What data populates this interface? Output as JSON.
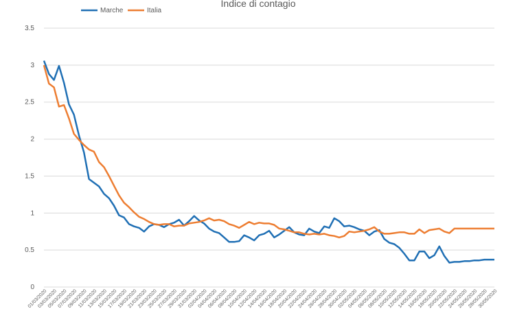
{
  "chart_data": {
    "type": "line",
    "title": "Indice di contagio",
    "xlabel": "",
    "ylabel": "",
    "ylim": [
      0,
      3.5
    ],
    "yticks": [
      "0",
      "0.5",
      "1",
      "1.5",
      "2",
      "2.5",
      "3",
      "3.5"
    ],
    "grid": true,
    "legend": "top-left",
    "x": [
      "01/03/2020",
      "02/03/2020",
      "03/03/2020",
      "04/03/2020",
      "05/03/2020",
      "06/03/2020",
      "07/03/2020",
      "08/03/2020",
      "09/03/2020",
      "10/03/2020",
      "11/03/2020",
      "12/03/2020",
      "13/03/2020",
      "14/03/2020",
      "15/03/2020",
      "16/03/2020",
      "17/03/2020",
      "18/03/2020",
      "19/03/2020",
      "20/03/2020",
      "21/03/2020",
      "22/03/2020",
      "23/03/2020",
      "24/03/2020",
      "25/03/2020",
      "26/03/2020",
      "27/03/2020",
      "28/03/2020",
      "29/03/2020",
      "30/03/2020",
      "31/03/2020",
      "01/04/2020",
      "02/04/2020",
      "03/04/2020",
      "04/04/2020",
      "05/04/2020",
      "06/04/2020",
      "07/04/2020",
      "08/04/2020",
      "09/04/2020",
      "10/04/2020",
      "11/04/2020",
      "12/04/2020",
      "13/04/2020",
      "14/04/2020",
      "15/04/2020",
      "16/04/2020",
      "17/04/2020",
      "18/04/2020",
      "19/04/2020",
      "20/04/2020",
      "21/04/2020",
      "22/04/2020",
      "23/04/2020",
      "24/04/2020",
      "25/04/2020",
      "26/04/2020",
      "27/04/2020",
      "28/04/2020",
      "29/04/2020",
      "30/04/2020",
      "01/05/2020",
      "02/05/2020",
      "03/05/2020",
      "04/05/2020",
      "05/05/2020",
      "06/05/2020",
      "07/05/2020",
      "08/05/2020",
      "09/05/2020",
      "10/05/2020",
      "11/05/2020",
      "12/05/2020",
      "13/05/2020",
      "14/05/2020",
      "15/05/2020",
      "16/05/2020",
      "17/05/2020",
      "18/05/2020",
      "19/05/2020",
      "20/05/2020",
      "21/05/2020",
      "22/05/2020",
      "23/05/2020",
      "24/05/2020",
      "25/05/2020",
      "26/05/2020",
      "27/05/2020",
      "28/05/2020",
      "29/05/2020",
      "30/05/2020"
    ],
    "xtick_labels": [
      "01/03/2020",
      "03/03/2020",
      "05/03/2020",
      "07/03/2020",
      "09/03/2020",
      "11/03/2020",
      "13/03/2020",
      "15/03/2020",
      "17/03/2020",
      "19/03/2020",
      "21/03/2020",
      "23/03/2020",
      "25/03/2020",
      "27/03/2020",
      "29/03/2020",
      "31/03/2020",
      "02/04/2020",
      "04/04/2020",
      "06/04/2020",
      "08/04/2020",
      "10/04/2020",
      "12/04/2020",
      "14/04/2020",
      "16/04/2020",
      "18/04/2020",
      "20/04/2020",
      "22/04/2020",
      "24/04/2020",
      "26/04/2020",
      "28/04/2020",
      "30/04/2020",
      "02/05/2020",
      "04/05/2020",
      "06/05/2020",
      "08/05/2020",
      "10/05/2020",
      "12/05/2020",
      "14/05/2020",
      "16/05/2020",
      "18/05/2020",
      "20/05/2020",
      "22/05/2020",
      "24/05/2020",
      "26/05/2020",
      "28/05/2020",
      "30/05/2020"
    ],
    "series": [
      {
        "name": "Marche",
        "color": "#1f6fb4",
        "values": [
          3.06,
          2.88,
          2.8,
          2.99,
          2.76,
          2.47,
          2.33,
          2.05,
          1.82,
          1.46,
          1.41,
          1.36,
          1.26,
          1.2,
          1.1,
          0.97,
          0.94,
          0.85,
          0.82,
          0.8,
          0.75,
          0.82,
          0.85,
          0.84,
          0.81,
          0.85,
          0.87,
          0.91,
          0.83,
          0.89,
          0.96,
          0.9,
          0.86,
          0.79,
          0.75,
          0.73,
          0.67,
          0.61,
          0.61,
          0.62,
          0.7,
          0.67,
          0.63,
          0.7,
          0.72,
          0.76,
          0.67,
          0.71,
          0.76,
          0.81,
          0.74,
          0.71,
          0.7,
          0.79,
          0.75,
          0.73,
          0.82,
          0.8,
          0.93,
          0.89,
          0.82,
          0.83,
          0.81,
          0.78,
          0.76,
          0.7,
          0.75,
          0.77,
          0.65,
          0.6,
          0.58,
          0.53,
          0.45,
          0.36,
          0.36,
          0.48,
          0.48,
          0.39,
          0.43,
          0.55,
          0.42,
          0.33,
          0.34,
          0.34,
          0.35,
          0.35,
          0.36,
          0.36,
          0.37,
          0.37,
          0.37
        ]
      },
      {
        "name": "Italia",
        "color": "#ed7d31",
        "values": [
          3.0,
          2.75,
          2.7,
          2.44,
          2.46,
          2.28,
          2.07,
          1.99,
          1.92,
          1.86,
          1.83,
          1.69,
          1.62,
          1.5,
          1.37,
          1.24,
          1.14,
          1.08,
          1.01,
          0.95,
          0.92,
          0.88,
          0.85,
          0.84,
          0.85,
          0.85,
          0.82,
          0.83,
          0.83,
          0.86,
          0.87,
          0.88,
          0.9,
          0.93,
          0.9,
          0.91,
          0.89,
          0.85,
          0.83,
          0.8,
          0.84,
          0.88,
          0.85,
          0.87,
          0.86,
          0.86,
          0.84,
          0.79,
          0.78,
          0.76,
          0.74,
          0.74,
          0.72,
          0.71,
          0.72,
          0.71,
          0.72,
          0.7,
          0.69,
          0.67,
          0.69,
          0.75,
          0.74,
          0.75,
          0.76,
          0.78,
          0.81,
          0.75,
          0.72,
          0.72,
          0.73,
          0.74,
          0.74,
          0.72,
          0.72,
          0.78,
          0.73,
          0.77,
          0.78,
          0.79,
          0.75,
          0.73,
          0.79,
          0.79,
          0.79,
          0.79,
          0.79,
          0.79,
          0.79,
          0.79,
          0.79
        ]
      }
    ]
  }
}
